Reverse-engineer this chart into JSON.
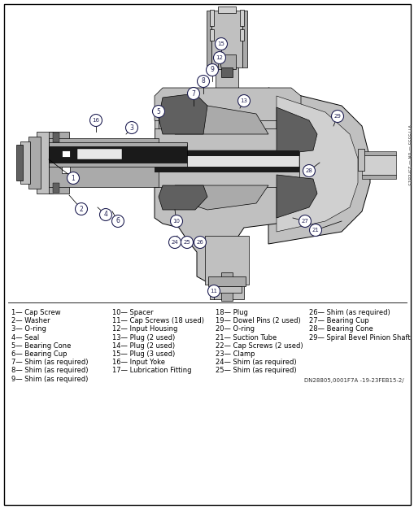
{
  "bg": "#ffffff",
  "legend_items_col1": [
    "1— Cap Screw",
    "2— Washer",
    "3— O-ring",
    "4— Seal",
    "5— Bearing Cone",
    "6— Bearing Cup",
    "7— Shim (as required)",
    "8— Shim (as required)",
    "9— Shim (as required)"
  ],
  "legend_items_col2": [
    "10— Spacer",
    "11— Cap Screws (18 used)",
    "12— Input Housing",
    "13— Plug (2 used)",
    "14— Plug (2 used)",
    "15— Plug (3 used)",
    "16— Input Yoke",
    "17— Lubrication Fitting"
  ],
  "legend_items_col3": [
    "18— Plug",
    "19— Dowel Pins (2 used)",
    "20— O-ring",
    "21— Suction Tube",
    "22— Cap Screws (2 used)",
    "23— Clamp",
    "24— Shim (as required)",
    "25— Shim (as required)"
  ],
  "legend_items_col4": [
    "26— Shim (as required)",
    "27— Bearing Cup",
    "28— Bearing Cone",
    "29— Spiral Bevel Pinion Shaft"
  ],
  "figure_number": "DN28805,0001F7A -19-23FEB15-2/",
  "side_text": "VT75555 — UN — 23FEB15",
  "legend_fontsize": 6.0,
  "fig_num_fontsize": 5.0
}
